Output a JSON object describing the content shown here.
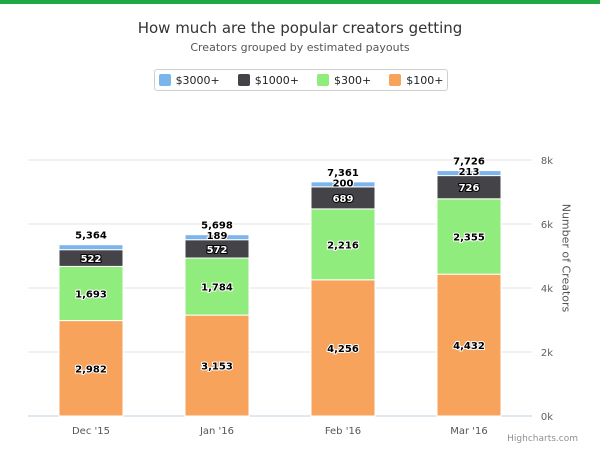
{
  "chart_data": {
    "type": "bar",
    "stacked": true,
    "title": "How much are the popular creators getting",
    "subtitle": "Creators grouped by estimated payouts",
    "categories": [
      "Dec '15",
      "Jan '16",
      "Feb '16",
      "Mar '16"
    ],
    "series": [
      {
        "name": "$3000+",
        "color": "#7cb5ec",
        "values": [
          null,
          null,
          null,
          null
        ]
      },
      {
        "name": "$1000+",
        "color": "#434348",
        "values": [
          522,
          572,
          689,
          726
        ]
      },
      {
        "name": "$300+",
        "color": "#90ed7d",
        "values": [
          1693,
          1784,
          2216,
          2355
        ]
      },
      {
        "name": "$100+",
        "color": "#f7a35c",
        "values": [
          2982,
          3153,
          4256,
          4432
        ]
      }
    ],
    "series_labels": {
      "$3000+": [
        "",
        "189",
        "200",
        "213"
      ]
    },
    "totals": [
      "5,364",
      "5,698",
      "7,361",
      "7,726"
    ],
    "value_labels": {
      "$1000+": [
        "522",
        "572",
        "689",
        "726"
      ],
      "$300+": [
        "1,693",
        "1,784",
        "2,216",
        "2,355"
      ],
      "$100+": [
        "2,982",
        "3,153",
        "4,256",
        "4,432"
      ]
    },
    "ylabel": "Number of Creators",
    "yaxis_position": "right",
    "ylim": [
      0,
      8000
    ],
    "yticks": [
      0,
      2000,
      4000,
      6000,
      8000
    ],
    "ytick_labels": [
      "0k",
      "2k",
      "4k",
      "6k",
      "8k"
    ],
    "legend_position": "top",
    "grid": true,
    "credits": "Highcharts.com"
  }
}
